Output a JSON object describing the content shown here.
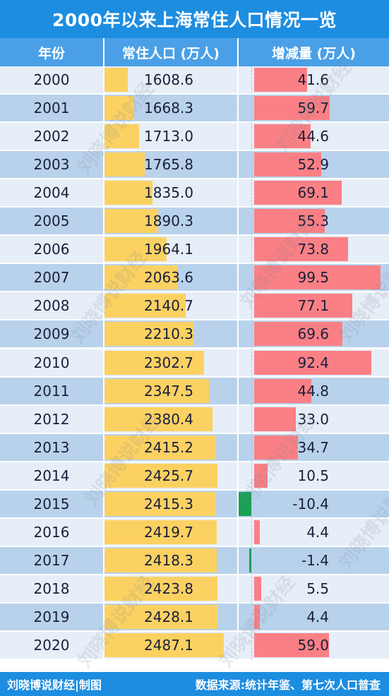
{
  "title": "2000年以来上海常住人口情况一览",
  "header": {
    "col_year": "年份",
    "col_population": "常住人口 (万人)",
    "col_change": "增减量 (万人)"
  },
  "footer": {
    "left": "刘晓博说财经|制图",
    "right": "数据来源:统计年鉴、第七次人口普查"
  },
  "watermark": "刘晓博说财经",
  "colors": {
    "title_bg": "#1d8de0",
    "header_bg": "#4aa0e6",
    "row_light": "#e6eef8",
    "row_dark": "#b9d2ec",
    "population_bar": "#fbd162",
    "positive_bar": "#fa8085",
    "negative_bar": "#1aa053"
  },
  "chart_data": {
    "type": "table",
    "columns": [
      "年份",
      "常住人口 (万人)",
      "增减量 (万人)"
    ],
    "years": [
      "2000",
      "2001",
      "2002",
      "2003",
      "2004",
      "2005",
      "2006",
      "2007",
      "2008",
      "2009",
      "2010",
      "2011",
      "2012",
      "2013",
      "2014",
      "2015",
      "2016",
      "2017",
      "2018",
      "2019",
      "2020"
    ],
    "population": [
      "1608.6",
      "1668.3",
      "1713.0",
      "1765.8",
      "1835.0",
      "1890.3",
      "1964.1",
      "2063.6",
      "2140.7",
      "2210.3",
      "2302.7",
      "2347.5",
      "2380.4",
      "2415.2",
      "2425.7",
      "2415.3",
      "2419.7",
      "2418.3",
      "2423.8",
      "2428.1",
      "2487.1"
    ],
    "change": [
      "41.6",
      "59.7",
      "44.6",
      "52.9",
      "69.1",
      "55.3",
      "73.8",
      "99.5",
      "77.1",
      "69.6",
      "92.4",
      "44.8",
      "33.0",
      "34.7",
      "10.5",
      "-10.4",
      "4.4",
      "-1.4",
      "5.5",
      "4.4",
      "59.0"
    ]
  }
}
